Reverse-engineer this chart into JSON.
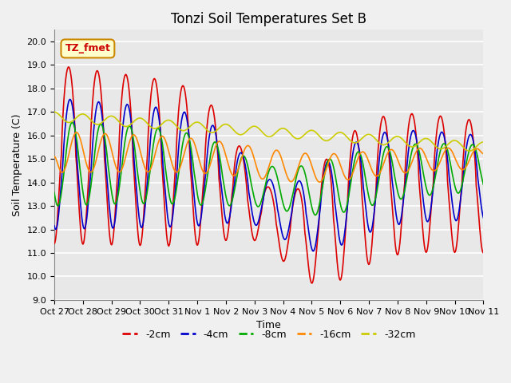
{
  "title": "Tonzi Soil Temperatures Set B",
  "xlabel": "Time",
  "ylabel": "Soil Temperature (C)",
  "ylim": [
    9.0,
    20.5
  ],
  "yticks": [
    9.0,
    10.0,
    11.0,
    12.0,
    13.0,
    14.0,
    15.0,
    16.0,
    17.0,
    18.0,
    19.0,
    20.0
  ],
  "xtick_labels": [
    "Oct 27",
    "Oct 28",
    "Oct 29",
    "Oct 30",
    "Oct 31",
    "Nov 1",
    "Nov 2",
    "Nov 3",
    "Nov 4",
    "Nov 5",
    "Nov 6",
    "Nov 7",
    "Nov 8",
    "Nov 9",
    "Nov 10",
    "Nov 11"
  ],
  "annotation_label": "TZ_fmet",
  "annotation_bbox_facecolor": "#ffffcc",
  "annotation_bbox_edgecolor": "#cc8800",
  "annotation_text_color": "#cc0000",
  "line_colors": [
    "#dd0000",
    "#0000cc",
    "#00aa00",
    "#ff8800",
    "#cccc00"
  ],
  "line_labels": [
    "-2cm",
    "-4cm",
    "-8cm",
    "-16cm",
    "-32cm"
  ],
  "line_width": 1.2,
  "plot_bg_color": "#e8e8e8",
  "fig_bg_color": "#f0f0f0",
  "title_fontsize": 12,
  "label_fontsize": 9,
  "tick_fontsize": 8
}
